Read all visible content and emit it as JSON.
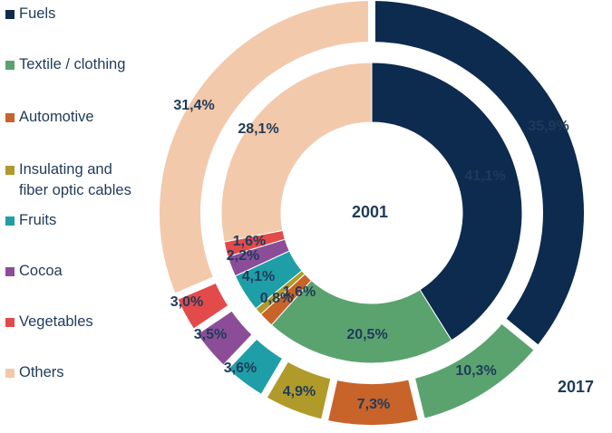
{
  "chart_data": {
    "type": "pie",
    "subtype": "double donut",
    "categories": [
      "Fuels",
      "Textile / clothing",
      "Automotive",
      "Insulating and fiber optic cables",
      "Fruits",
      "Cocoa",
      "Vegetables",
      "Others"
    ],
    "colors": [
      "#0d2b4e",
      "#5aa36f",
      "#c8632a",
      "#b09a2a",
      "#1e9ea6",
      "#8b4d98",
      "#e34a4a",
      "#f3c9ab"
    ],
    "series": [
      {
        "name": "2001",
        "ring": "inner",
        "values": [
          41.1,
          20.5,
          1.6,
          0.8,
          4.1,
          2.2,
          1.6,
          28.1
        ],
        "labels": [
          "41,1%",
          "20,5%",
          "1,6%",
          "0,8%",
          "4,1%",
          "2,2%",
          "1,6%",
          "28,1%"
        ]
      },
      {
        "name": "2017",
        "ring": "outer",
        "values": [
          35.9,
          10.3,
          7.3,
          4.9,
          3.6,
          3.5,
          3.0,
          31.4
        ],
        "labels": [
          "35,9%",
          "10,3%",
          "7,3%",
          "4,9%",
          "3,6%",
          "3,5%",
          "3,0%",
          "31,4%"
        ]
      }
    ],
    "legend": "left"
  }
}
